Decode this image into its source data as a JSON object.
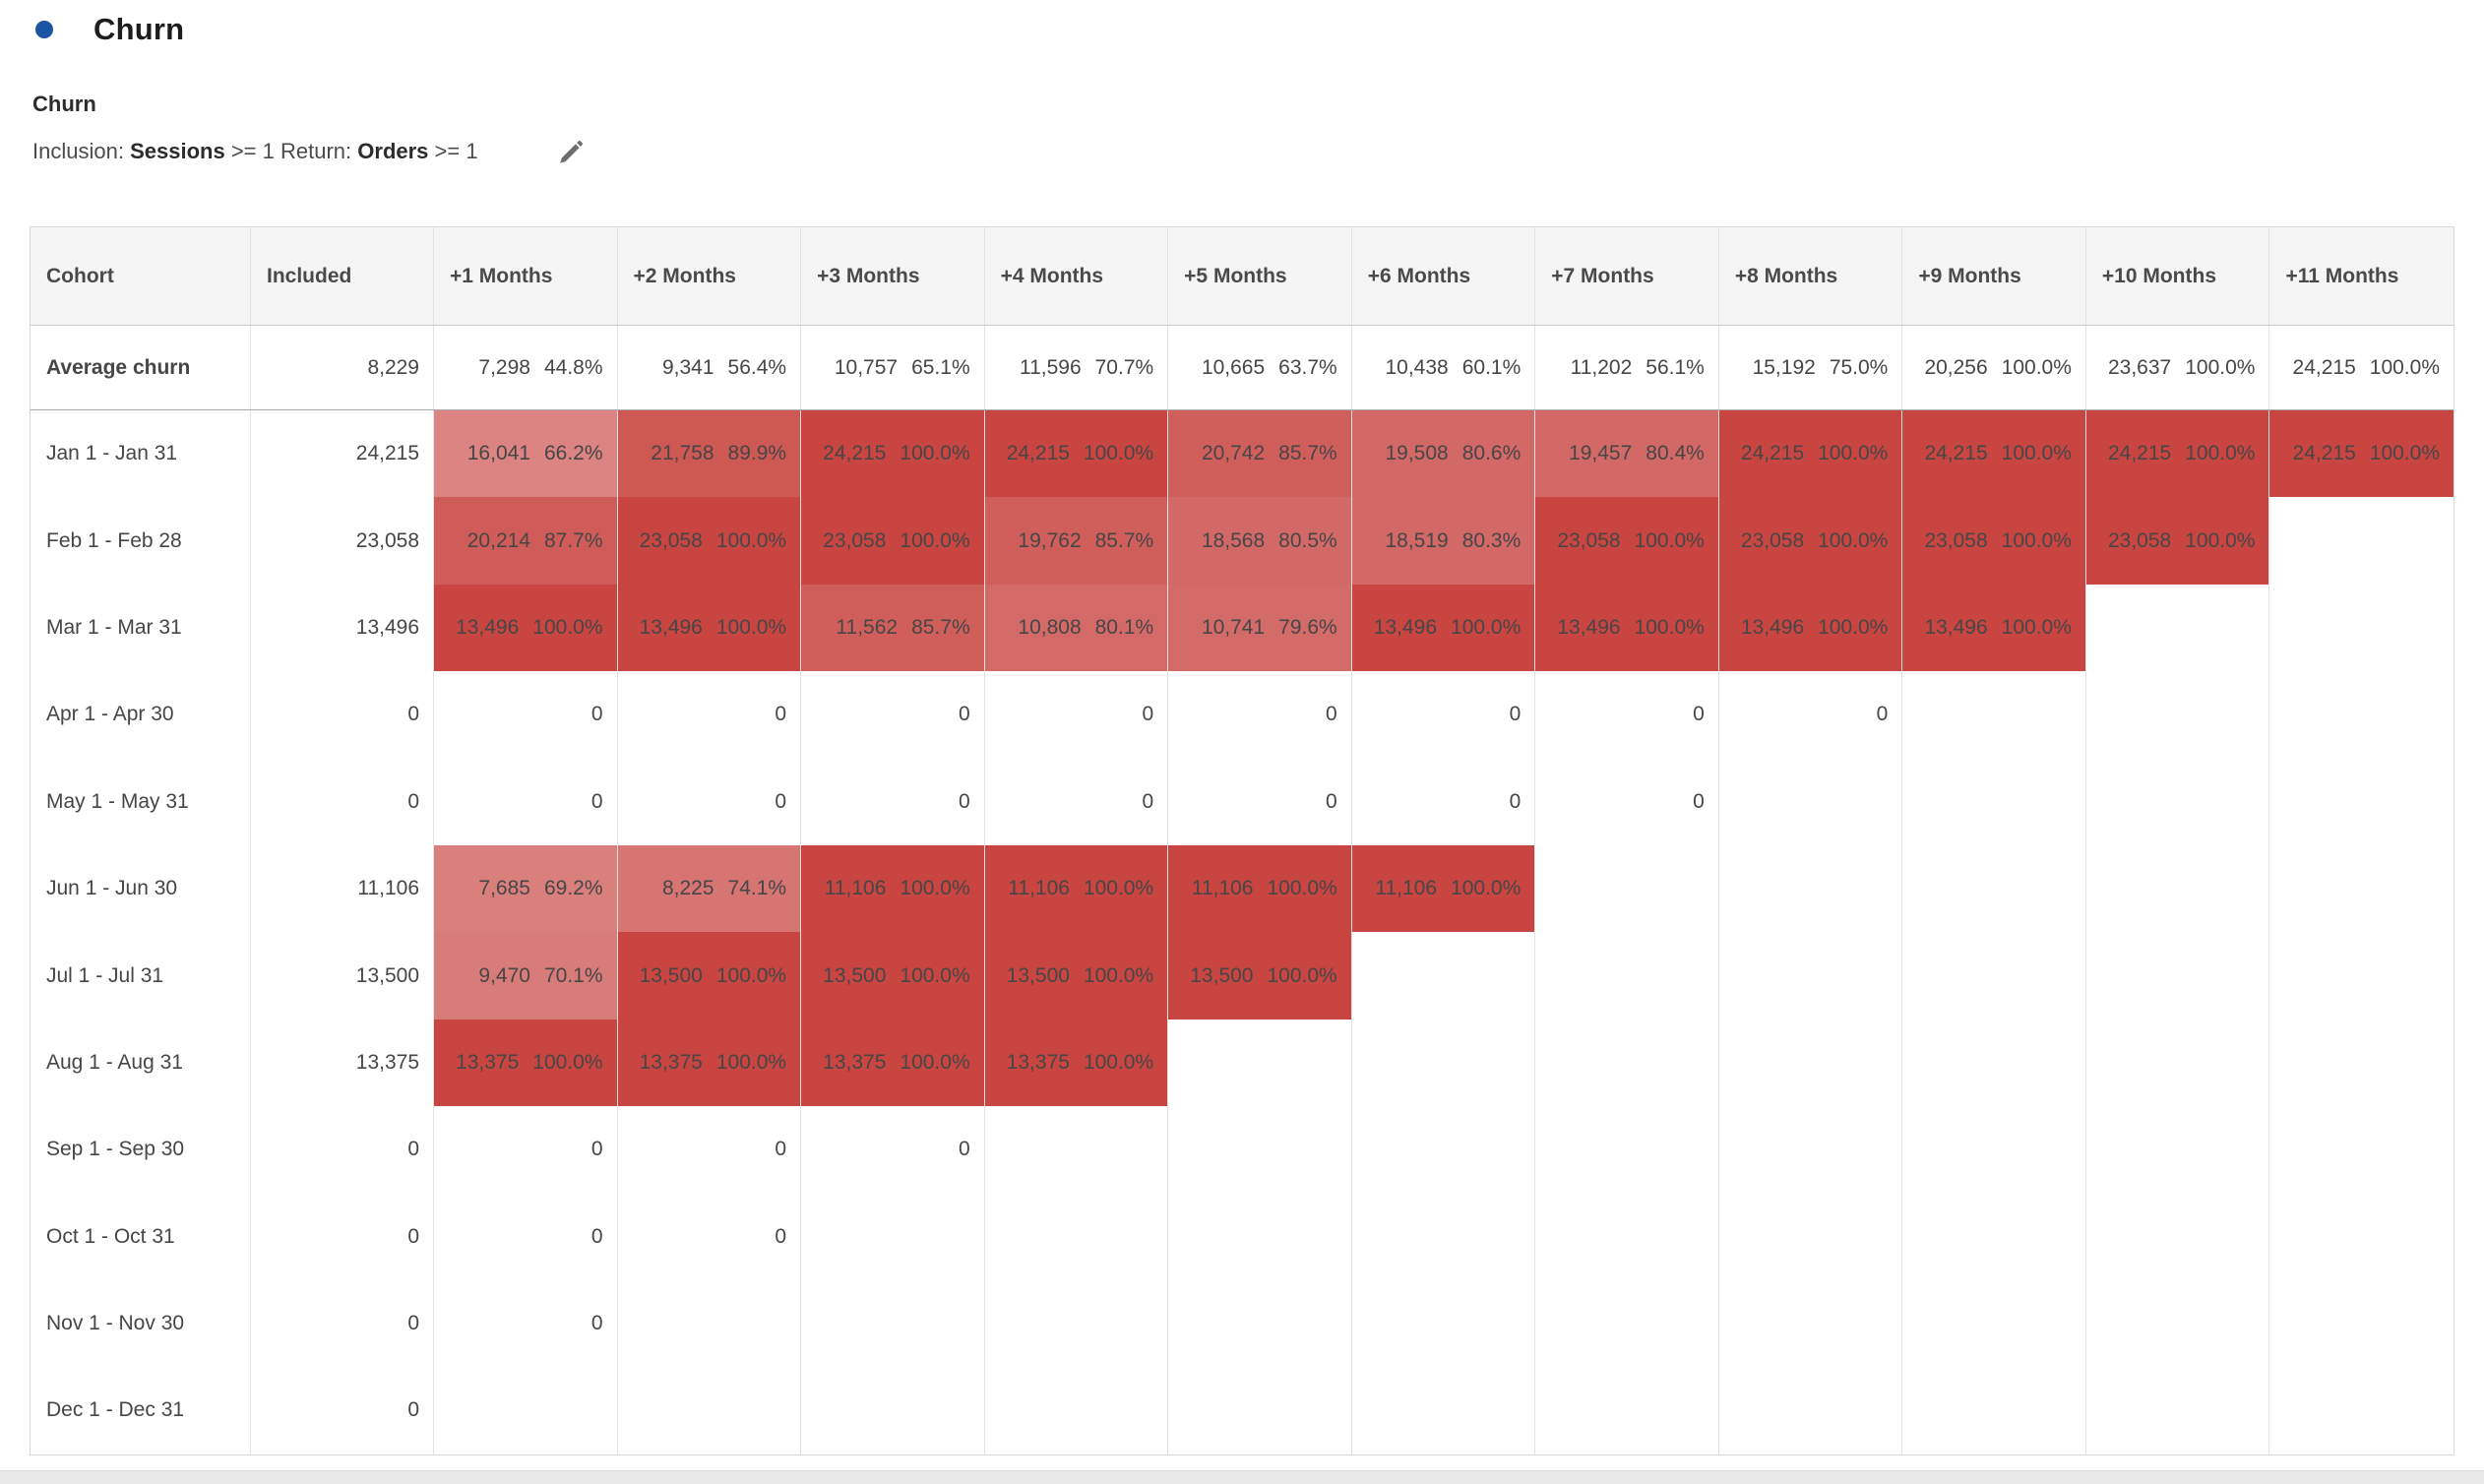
{
  "colors": {
    "dot_blue": "#1C54A4",
    "cell_red_rgb": "200,69,65",
    "cell_red_hex": "#C84541"
  },
  "panel": {
    "title": "Churn",
    "subtitle": "Churn",
    "criteria": {
      "inclusion_label": "Inclusion:",
      "inclusion_metric": "Sessions",
      "inclusion_condition": ">= 1",
      "return_label": "Return:",
      "return_metric": "Orders",
      "return_condition": ">= 1"
    },
    "edit_icon": "pencil-icon"
  },
  "chart_data": {
    "type": "table",
    "title": "Churn cohort table (monthly cohorts, churn % shaded red by percent)",
    "columns": [
      "Cohort",
      "Included",
      "+1 Months",
      "+2 Months",
      "+3 Months",
      "+4 Months",
      "+5 Months",
      "+6 Months",
      "+7 Months",
      "+8 Months",
      "+9 Months",
      "+10 Months",
      "+11 Months"
    ],
    "shading": {
      "base_rgb": "200,69,65",
      "alpha_rule": "percent/100",
      "average_row_unshaded": true,
      "zero_cells_unshaded": true
    },
    "rows": [
      {
        "label": "Average churn",
        "bold": true,
        "shade": false,
        "included": "8,229",
        "cells": [
          [
            "7,298",
            "44.8%"
          ],
          [
            "9,341",
            "56.4%"
          ],
          [
            "10,757",
            "65.1%"
          ],
          [
            "11,596",
            "70.7%"
          ],
          [
            "10,665",
            "63.7%"
          ],
          [
            "10,438",
            "60.1%"
          ],
          [
            "11,202",
            "56.1%"
          ],
          [
            "15,192",
            "75.0%"
          ],
          [
            "20,256",
            "100.0%"
          ],
          [
            "23,637",
            "100.0%"
          ],
          [
            "24,215",
            "100.0%"
          ]
        ]
      },
      {
        "label": "Jan 1 - Jan 31",
        "included": "24,215",
        "cells": [
          [
            "16,041",
            "66.2%"
          ],
          [
            "21,758",
            "89.9%"
          ],
          [
            "24,215",
            "100.0%"
          ],
          [
            "24,215",
            "100.0%"
          ],
          [
            "20,742",
            "85.7%"
          ],
          [
            "19,508",
            "80.6%"
          ],
          [
            "19,457",
            "80.4%"
          ],
          [
            "24,215",
            "100.0%"
          ],
          [
            "24,215",
            "100.0%"
          ],
          [
            "24,215",
            "100.0%"
          ],
          [
            "24,215",
            "100.0%"
          ]
        ]
      },
      {
        "label": "Feb 1 - Feb 28",
        "included": "23,058",
        "cells": [
          [
            "20,214",
            "87.7%"
          ],
          [
            "23,058",
            "100.0%"
          ],
          [
            "23,058",
            "100.0%"
          ],
          [
            "19,762",
            "85.7%"
          ],
          [
            "18,568",
            "80.5%"
          ],
          [
            "18,519",
            "80.3%"
          ],
          [
            "23,058",
            "100.0%"
          ],
          [
            "23,058",
            "100.0%"
          ],
          [
            "23,058",
            "100.0%"
          ],
          [
            "23,058",
            "100.0%"
          ],
          null
        ]
      },
      {
        "label": "Mar 1 - Mar 31",
        "included": "13,496",
        "cells": [
          [
            "13,496",
            "100.0%"
          ],
          [
            "13,496",
            "100.0%"
          ],
          [
            "11,562",
            "85.7%"
          ],
          [
            "10,808",
            "80.1%"
          ],
          [
            "10,741",
            "79.6%"
          ],
          [
            "13,496",
            "100.0%"
          ],
          [
            "13,496",
            "100.0%"
          ],
          [
            "13,496",
            "100.0%"
          ],
          [
            "13,496",
            "100.0%"
          ],
          null,
          null
        ]
      },
      {
        "label": "Apr 1 - Apr 30",
        "included": "0",
        "cells": [
          [
            "0"
          ],
          [
            "0"
          ],
          [
            "0"
          ],
          [
            "0"
          ],
          [
            "0"
          ],
          [
            "0"
          ],
          [
            "0"
          ],
          [
            "0"
          ],
          null,
          null,
          null
        ]
      },
      {
        "label": "May 1 - May 31",
        "included": "0",
        "cells": [
          [
            "0"
          ],
          [
            "0"
          ],
          [
            "0"
          ],
          [
            "0"
          ],
          [
            "0"
          ],
          [
            "0"
          ],
          [
            "0"
          ],
          null,
          null,
          null,
          null
        ]
      },
      {
        "label": "Jun 1 - Jun 30",
        "included": "11,106",
        "cells": [
          [
            "7,685",
            "69.2%"
          ],
          [
            "8,225",
            "74.1%"
          ],
          [
            "11,106",
            "100.0%"
          ],
          [
            "11,106",
            "100.0%"
          ],
          [
            "11,106",
            "100.0%"
          ],
          [
            "11,106",
            "100.0%"
          ],
          null,
          null,
          null,
          null,
          null
        ]
      },
      {
        "label": "Jul 1 - Jul 31",
        "included": "13,500",
        "cells": [
          [
            "9,470",
            "70.1%"
          ],
          [
            "13,500",
            "100.0%"
          ],
          [
            "13,500",
            "100.0%"
          ],
          [
            "13,500",
            "100.0%"
          ],
          [
            "13,500",
            "100.0%"
          ],
          null,
          null,
          null,
          null,
          null,
          null
        ]
      },
      {
        "label": "Aug 1 - Aug 31",
        "included": "13,375",
        "cells": [
          [
            "13,375",
            "100.0%"
          ],
          [
            "13,375",
            "100.0%"
          ],
          [
            "13,375",
            "100.0%"
          ],
          [
            "13,375",
            "100.0%"
          ],
          null,
          null,
          null,
          null,
          null,
          null,
          null
        ]
      },
      {
        "label": "Sep 1 - Sep 30",
        "included": "0",
        "cells": [
          [
            "0"
          ],
          [
            "0"
          ],
          [
            "0"
          ],
          null,
          null,
          null,
          null,
          null,
          null,
          null,
          null
        ]
      },
      {
        "label": "Oct 1 - Oct 31",
        "included": "0",
        "cells": [
          [
            "0"
          ],
          [
            "0"
          ],
          null,
          null,
          null,
          null,
          null,
          null,
          null,
          null,
          null
        ]
      },
      {
        "label": "Nov 1 - Nov 30",
        "included": "0",
        "cells": [
          [
            "0"
          ],
          null,
          null,
          null,
          null,
          null,
          null,
          null,
          null,
          null,
          null
        ]
      },
      {
        "label": "Dec 1 - Dec 31",
        "included": "0",
        "cells": [
          null,
          null,
          null,
          null,
          null,
          null,
          null,
          null,
          null,
          null,
          null
        ]
      }
    ]
  }
}
